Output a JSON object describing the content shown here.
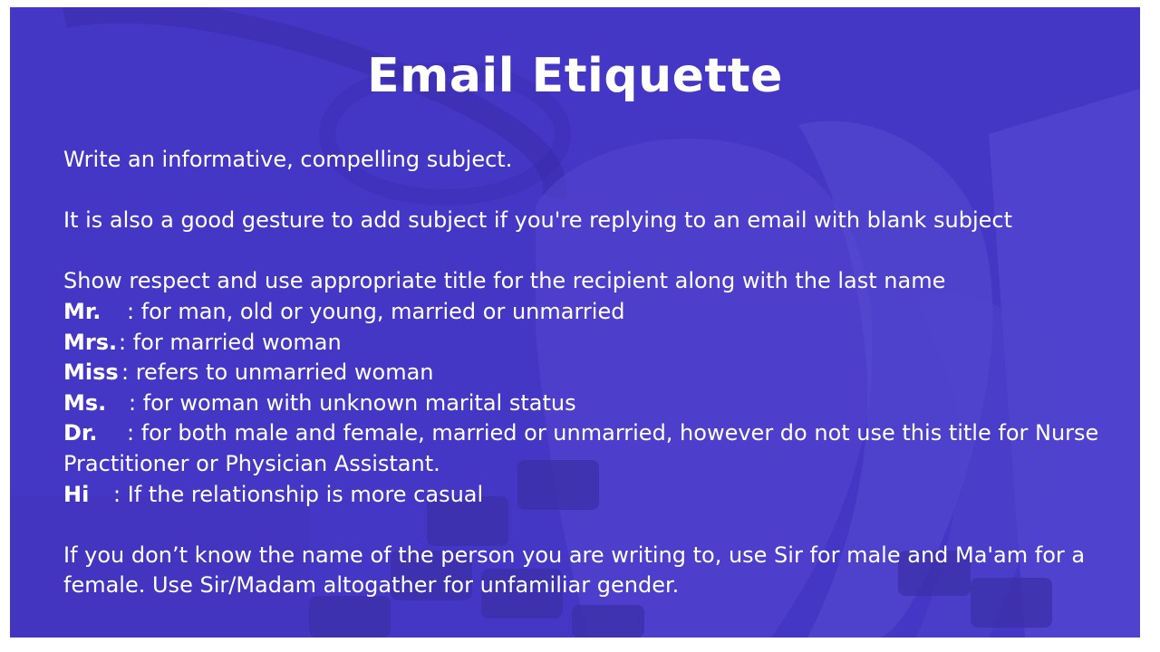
{
  "title": "Email Etiquette",
  "colors": {
    "background": "#4537c6",
    "text": "#ffffff"
  },
  "paragraphs": {
    "p1": "Write an informative, compelling subject.",
    "p2": "It is also a good gesture to add subject if you're replying to an email with blank subject",
    "p3": "Show respect and use appropriate title for the recipient along with the last name"
  },
  "titles": [
    {
      "abbr": "Mr.",
      "desc": ": for man, old or young, married or unmarried"
    },
    {
      "abbr": "Mrs.",
      "desc": ": for married woman"
    },
    {
      "abbr": "Miss",
      "desc": ": refers to unmarried woman"
    },
    {
      "abbr": "Ms.",
      "desc": ": for woman with unknown marital status"
    },
    {
      "abbr": "Dr.",
      "desc": ": for both male and female, married or unmarried, however do not use this title for Nurse Practitioner or Physician Assistant."
    },
    {
      "abbr": "Hi",
      "desc": ": If the relationship is more casual"
    }
  ],
  "closing": "If you don’t know the name of the person you are writing to, use Sir for male and Ma'am for a female. Use Sir/Madam altogather for unfamiliar gender."
}
